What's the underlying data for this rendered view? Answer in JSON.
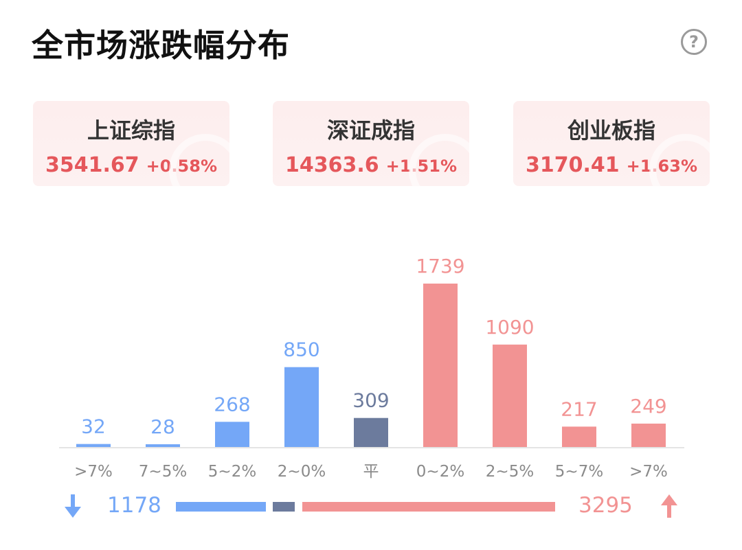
{
  "title": "全市场涨跌幅分布",
  "help_icon": "question-circle-icon",
  "indices": [
    {
      "name": "上证综指",
      "value": "3541.67",
      "change": "+0.58%"
    },
    {
      "name": "深证成指",
      "value": "14363.6",
      "change": "+1.51%"
    },
    {
      "name": "创业板指",
      "value": "3170.41",
      "change": "+1.63%"
    }
  ],
  "colors": {
    "down": "#74a7f7",
    "flat": "#6c7b9d",
    "up": "#f29393",
    "up_text": "#e5575b"
  },
  "chart_data": {
    "type": "bar",
    "categories": [
      ">7%",
      "7~5%",
      "5~2%",
      "2~0%",
      "平",
      "0~2%",
      "2~5%",
      "5~7%",
      ">7%"
    ],
    "values": [
      32,
      28,
      268,
      850,
      309,
      1739,
      1090,
      217,
      249
    ],
    "groups": [
      "down",
      "down",
      "down",
      "down",
      "flat",
      "up",
      "up",
      "up",
      "up"
    ],
    "ylim": [
      0,
      1739
    ]
  },
  "summary": {
    "down_total": "1178",
    "up_total": "3295",
    "down_icon": "arrow-down-icon",
    "up_icon": "arrow-up-icon"
  }
}
